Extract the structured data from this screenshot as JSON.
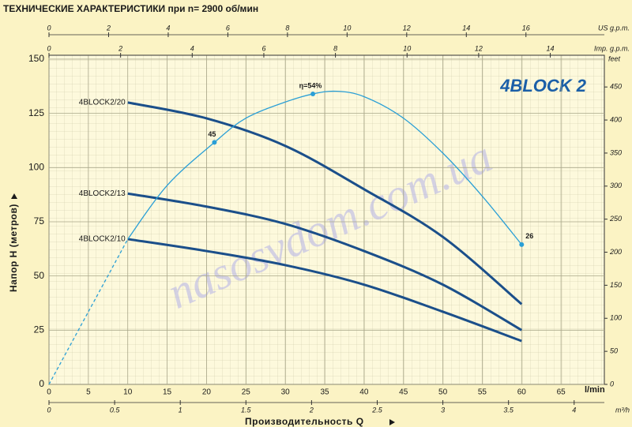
{
  "chart_data": {
    "type": "line",
    "subtitle": "ТЕХНИЧЕСКИЕ ХАРАКТЕРИСТИКИ при n= 2900 об/мин",
    "title": "4BLOCK 2",
    "x_label": "Производительность Q",
    "y_label": "Напор H (метров)",
    "x_unit": "l/min",
    "watermark": "nasosvdom.com.ua",
    "xlim": [
      0,
      70.5
    ],
    "xticks": [
      0,
      5,
      10,
      15,
      20,
      25,
      30,
      35,
      40,
      45,
      50,
      55,
      60,
      65
    ],
    "ylim": [
      0,
      151.8
    ],
    "yticks": [
      0,
      25,
      50,
      75,
      100,
      125,
      150
    ],
    "y2lim": [
      0,
      61.2
    ],
    "grid": true,
    "extra_axes": [
      {
        "label": "US g.p.m.",
        "side": "top",
        "lim": [
          0,
          18.63
        ],
        "ticks": [
          0,
          2,
          4,
          6,
          8,
          10,
          12,
          14,
          16
        ]
      },
      {
        "label": "Imp. g.p.m.",
        "side": "top",
        "lim": [
          0,
          15.51
        ],
        "ticks": [
          0,
          2,
          4,
          6,
          8,
          10,
          12,
          14
        ]
      },
      {
        "label": "m³/h",
        "side": "bottom",
        "lim": [
          0,
          4.23
        ],
        "ticks": [
          0,
          0.5,
          1,
          1.5,
          2,
          2.5,
          3,
          3.5,
          4
        ]
      },
      {
        "label": "feet",
        "side": "right",
        "lim": [
          0,
          498
        ],
        "ticks": [
          0,
          50,
          100,
          150,
          200,
          250,
          300,
          350,
          400,
          450
        ]
      }
    ],
    "series": [
      {
        "name": "4BLOCK2/20",
        "color": "#1b4f8a",
        "x": [
          10,
          20,
          30,
          40,
          50,
          60
        ],
        "values": [
          130,
          122.7,
          110,
          90,
          68,
          37
        ]
      },
      {
        "name": "4BLOCK2/13",
        "color": "#1b4f8a",
        "x": [
          10,
          20,
          30,
          40,
          50,
          60
        ],
        "values": [
          88,
          82,
          74,
          61.5,
          46,
          25
        ]
      },
      {
        "name": "4BLOCK2/10",
        "color": "#1b4f8a",
        "x": [
          10,
          20,
          30,
          40,
          50,
          60
        ],
        "values": [
          67,
          61.5,
          55,
          46,
          33.5,
          20
        ]
      },
      {
        "color": "#2a9fd6",
        "axis": "y2",
        "x": [
          10,
          15,
          21,
          25,
          30,
          33.5,
          36.5,
          40,
          45,
          50,
          55,
          60
        ],
        "values": [
          27,
          37,
          45,
          49.5,
          52.5,
          54,
          54.5,
          53.5,
          49.5,
          43,
          35,
          26
        ],
        "value_labels": [
          null,
          null,
          "45",
          null,
          null,
          "η=54%",
          null,
          null,
          null,
          null,
          null,
          "26"
        ]
      },
      {
        "color": "#2a9fd6",
        "axis": "y2",
        "dashed": true,
        "x": [
          0,
          5,
          10
        ],
        "values": [
          0,
          13.5,
          27
        ]
      }
    ]
  }
}
